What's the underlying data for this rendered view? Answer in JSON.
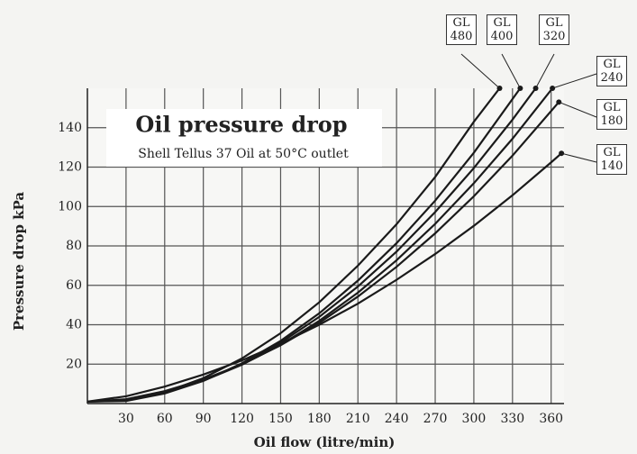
{
  "chart_data": {
    "type": "line",
    "title": "Oil pressure drop",
    "subtitle": "Shell Tellus 37 Oil at 50°C outlet",
    "x_label": "Oil flow (litre/min)",
    "y_label": "Pressure drop kPa",
    "xlim": [
      0,
      370
    ],
    "ylim": [
      0,
      160
    ],
    "xticks": [
      30,
      60,
      90,
      120,
      150,
      180,
      210,
      240,
      270,
      300,
      330,
      360
    ],
    "yticks": [
      20,
      40,
      60,
      80,
      100,
      120,
      140
    ],
    "grid": true,
    "series": [
      {
        "name": "GL 480",
        "color": "#1a1a1a",
        "x": [
          0,
          30,
          60,
          90,
          120,
          150,
          180,
          210,
          240,
          270,
          300,
          320
        ],
        "values": [
          1,
          1.4,
          5.7,
          12.9,
          22.9,
          35.7,
          51.4,
          70,
          91,
          115,
          143,
          160
        ]
      },
      {
        "name": "GL 400",
        "color": "#1a1a1a",
        "x": [
          0,
          30,
          60,
          90,
          120,
          150,
          180,
          210,
          240,
          270,
          300,
          336
        ],
        "values": [
          1,
          1.3,
          5.1,
          11.5,
          20.4,
          31.8,
          45.8,
          62.4,
          81.4,
          103,
          127.3,
          160
        ]
      },
      {
        "name": "GL 320",
        "color": "#1a1a1a",
        "x": [
          0,
          30,
          60,
          90,
          120,
          150,
          180,
          210,
          240,
          270,
          300,
          330,
          348
        ],
        "values": [
          1,
          1.6,
          5.4,
          11.6,
          20.1,
          30.9,
          44,
          59.4,
          77.1,
          97.2,
          119.5,
          144.1,
          160
        ]
      },
      {
        "name": "GL 240",
        "color": "#1a1a1a",
        "x": [
          0,
          30,
          60,
          90,
          120,
          150,
          180,
          210,
          240,
          270,
          300,
          330,
          361
        ],
        "values": [
          1,
          1.8,
          5.6,
          11.6,
          19.7,
          29.8,
          42,
          56.3,
          72.7,
          91.2,
          111.8,
          134.4,
          160
        ]
      },
      {
        "name": "GL 180",
        "color": "#1a1a1a",
        "x": [
          0,
          30,
          60,
          90,
          120,
          150,
          180,
          210,
          240,
          270,
          300,
          330,
          366
        ],
        "values": [
          1,
          2.2,
          6.3,
          12.2,
          19.9,
          29.6,
          41,
          54.3,
          69.4,
          86.4,
          105.2,
          125.8,
          153
        ]
      },
      {
        "name": "GL 140",
        "color": "#1a1a1a",
        "x": [
          0,
          30,
          60,
          90,
          120,
          150,
          180,
          210,
          240,
          270,
          300,
          330,
          360,
          368
        ],
        "values": [
          1,
          3.7,
          8.6,
          14.7,
          21.9,
          30.4,
          40,
          50.7,
          62.8,
          75.9,
          90.2,
          105.7,
          122.4,
          127
        ]
      }
    ]
  }
}
